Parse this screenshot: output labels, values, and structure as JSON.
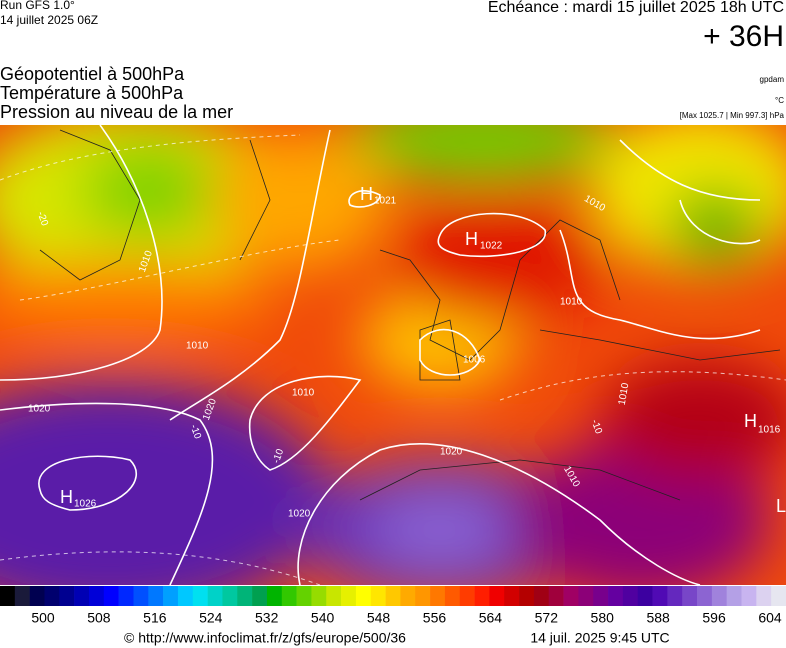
{
  "header": {
    "run": "Run GFS 1.0°",
    "run_date": "14 juillet 2025 06Z",
    "valid": "Echéance : mardi 15 juillet 2025 18h UTC",
    "lead": "+ 36H"
  },
  "titles": [
    "Géopotentiel à 500hPa",
    "Température à 500hPa",
    "Pression au niveau de la mer"
  ],
  "units": {
    "geopotential": "gpdam",
    "temperature": "°C",
    "pressure": "[Max 1025.7 | Min 997.3] hPa"
  },
  "map": {
    "highs": [
      {
        "letter": "H",
        "value": 1022
      },
      {
        "letter": "H",
        "value": 1026
      },
      {
        "letter": "H",
        "value": 1016
      },
      {
        "letter": "H",
        "value": 1021
      }
    ],
    "lows": [
      {
        "letter": "L"
      }
    ],
    "isobar_labels": [
      1010,
      1010,
      1010,
      1010,
      1020,
      1020,
      1020,
      1020,
      1010,
      1010,
      1006,
      1010
    ],
    "temperature_labels": [
      -20,
      -10,
      -10,
      -10
    ]
  },
  "colorbar": {
    "ticks": [
      500,
      508,
      516,
      524,
      532,
      540,
      548,
      556,
      564,
      572,
      580,
      588,
      596,
      604
    ],
    "colors": [
      "#000000",
      "#1a1a3a",
      "#000050",
      "#00006e",
      "#000090",
      "#0000b4",
      "#0000d8",
      "#0000ff",
      "#0028ff",
      "#0050ff",
      "#0078ff",
      "#00a0ff",
      "#00c8ff",
      "#00e0f0",
      "#00d2c8",
      "#00c8a0",
      "#00b478",
      "#00a050",
      "#00b400",
      "#32c800",
      "#64d200",
      "#96dc00",
      "#c8e600",
      "#e6f000",
      "#ffff00",
      "#ffe600",
      "#ffc800",
      "#ffaa00",
      "#ff9600",
      "#ff7800",
      "#ff5a00",
      "#ff3c00",
      "#ff1e00",
      "#f00000",
      "#d20000",
      "#b40000",
      "#a00014",
      "#a0003c",
      "#a00064",
      "#8c0078",
      "#78008c",
      "#6400a0",
      "#5000a0",
      "#3c00a0",
      "#500ab4",
      "#6428be",
      "#7846c8",
      "#8c64d2",
      "#a082dc",
      "#b4a0e6",
      "#c8b4f0",
      "#dcd2f0",
      "#e6e6f0"
    ]
  },
  "footer": {
    "url": "© http://www.infoclimat.fr/z/gfs/europe/500/36",
    "issued": "14 juil. 2025  9:45 UTC"
  }
}
